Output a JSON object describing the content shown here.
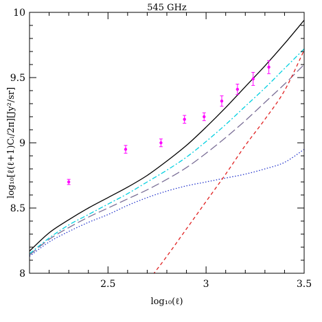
{
  "chart_data": {
    "type": "line",
    "title": "545 GHz",
    "xlabel": "log₁₀(ℓ)",
    "ylabel": "log₁₀[ℓ(ℓ+1)Cₗ/2π][Jy²/sr]",
    "xlim": [
      2.1,
      3.5
    ],
    "ylim": [
      8.0,
      10.0
    ],
    "x_ticks": [
      2.5,
      3,
      3.5
    ],
    "x_tick_labels": [
      "2.5",
      "3",
      "3.5"
    ],
    "y_ticks": [
      8,
      8.5,
      9,
      9.5,
      10
    ],
    "y_tick_labels": [
      "8",
      "8.5",
      "9",
      "9.5",
      "10"
    ],
    "grid": false,
    "series": [
      {
        "style": "solid",
        "color": "#000000",
        "x": [
          2.1,
          2.2,
          2.3,
          2.4,
          2.5,
          2.6,
          2.7,
          2.8,
          2.9,
          3.0,
          3.1,
          3.2,
          3.3,
          3.4,
          3.5
        ],
        "y": [
          8.17,
          8.31,
          8.41,
          8.5,
          8.58,
          8.66,
          8.75,
          8.86,
          8.98,
          9.12,
          9.27,
          9.43,
          9.59,
          9.76,
          9.94
        ]
      },
      {
        "style": "dash-dot",
        "color": "#00d0e0",
        "x": [
          2.1,
          2.2,
          2.3,
          2.4,
          2.5,
          2.6,
          2.7,
          2.8,
          2.9,
          3.0,
          3.1,
          3.2,
          3.3,
          3.4,
          3.5
        ],
        "y": [
          8.15,
          8.27,
          8.37,
          8.45,
          8.53,
          8.61,
          8.7,
          8.79,
          8.89,
          9.01,
          9.14,
          9.28,
          9.42,
          9.57,
          9.72
        ]
      },
      {
        "style": "long-dash",
        "color": "#7a6e96",
        "x": [
          2.1,
          2.2,
          2.3,
          2.4,
          2.5,
          2.6,
          2.7,
          2.8,
          2.9,
          3.0,
          3.1,
          3.2,
          3.3,
          3.4,
          3.5
        ],
        "y": [
          8.14,
          8.26,
          8.35,
          8.43,
          8.5,
          8.57,
          8.64,
          8.72,
          8.81,
          8.92,
          9.04,
          9.17,
          9.31,
          9.45,
          9.6
        ]
      },
      {
        "style": "dotted",
        "color": "#2233cc",
        "x": [
          2.1,
          2.2,
          2.3,
          2.4,
          2.5,
          2.6,
          2.7,
          2.8,
          2.9,
          3.0,
          3.1,
          3.2,
          3.3,
          3.4,
          3.5
        ],
        "y": [
          8.13,
          8.24,
          8.32,
          8.39,
          8.45,
          8.52,
          8.58,
          8.63,
          8.67,
          8.7,
          8.73,
          8.76,
          8.8,
          8.85,
          8.95
        ]
      },
      {
        "style": "dashed",
        "color": "#e02020",
        "x": [
          2.6,
          2.7,
          2.8,
          2.9,
          3.0,
          3.1,
          3.2,
          3.3,
          3.4,
          3.5
        ],
        "y": [
          7.72,
          7.93,
          8.13,
          8.34,
          8.55,
          8.76,
          8.98,
          9.18,
          9.4,
          9.71
        ]
      }
    ],
    "data_points": {
      "color": "#ff00ff",
      "x": [
        2.3,
        2.59,
        2.77,
        2.89,
        2.99,
        3.08,
        3.16,
        3.24,
        3.32
      ],
      "y": [
        8.7,
        8.95,
        9.0,
        9.18,
        9.2,
        9.32,
        9.41,
        9.49,
        9.58
      ],
      "err": [
        0.02,
        0.03,
        0.03,
        0.03,
        0.03,
        0.04,
        0.04,
        0.05,
        0.05
      ]
    }
  }
}
